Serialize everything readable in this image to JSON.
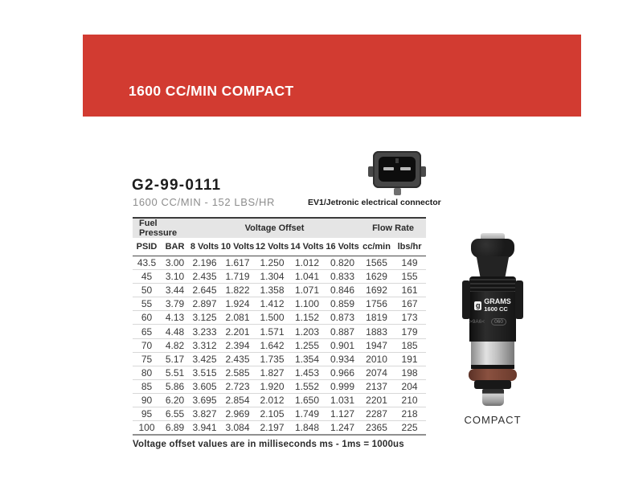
{
  "banner": {
    "title": "1600 CC/MIN COMPACT",
    "color": "#d23b31"
  },
  "product": {
    "part_number": "G2-99-0111",
    "flow_subtitle": "1600 CC/MIN - 152 LBS/HR",
    "connector_caption": "EV1/Jetronic electrical connector"
  },
  "table": {
    "group_headers": [
      {
        "label": "Fuel Pressure",
        "span": 2
      },
      {
        "label": "Voltage Offset",
        "span": 5
      },
      {
        "label": "Flow Rate",
        "span": 2
      }
    ],
    "columns": [
      "PSID",
      "BAR",
      "8 Volts",
      "10 Volts",
      "12 Volts",
      "14 Volts",
      "16 Volts",
      "cc/min",
      "lbs/hr"
    ],
    "rows": [
      [
        "43.5",
        "3.00",
        "2.196",
        "1.617",
        "1.250",
        "1.012",
        "0.820",
        "1565",
        "149"
      ],
      [
        "45",
        "3.10",
        "2.435",
        "1.719",
        "1.304",
        "1.041",
        "0.833",
        "1629",
        "155"
      ],
      [
        "50",
        "3.44",
        "2.645",
        "1.822",
        "1.358",
        "1.071",
        "0.846",
        "1692",
        "161"
      ],
      [
        "55",
        "3.79",
        "2.897",
        "1.924",
        "1.412",
        "1.100",
        "0.859",
        "1756",
        "167"
      ],
      [
        "60",
        "4.13",
        "3.125",
        "2.081",
        "1.500",
        "1.152",
        "0.873",
        "1819",
        "173"
      ],
      [
        "65",
        "4.48",
        "3.233",
        "2.201",
        "1.571",
        "1.203",
        "0.887",
        "1883",
        "179"
      ],
      [
        "70",
        "4.82",
        "3.312",
        "2.394",
        "1.642",
        "1.255",
        "0.901",
        "1947",
        "185"
      ],
      [
        "75",
        "5.17",
        "3.425",
        "2.435",
        "1.735",
        "1.354",
        "0.934",
        "2010",
        "191"
      ],
      [
        "80",
        "5.51",
        "3.515",
        "2.585",
        "1.827",
        "1.453",
        "0.966",
        "2074",
        "198"
      ],
      [
        "85",
        "5.86",
        "3.605",
        "2.723",
        "1.920",
        "1.552",
        "0.999",
        "2137",
        "204"
      ],
      [
        "90",
        "6.20",
        "3.695",
        "2.854",
        "2.012",
        "1.650",
        "1.031",
        "2201",
        "210"
      ],
      [
        "95",
        "6.55",
        "3.827",
        "2.969",
        "2.105",
        "1.749",
        "1.127",
        "2287",
        "218"
      ],
      [
        "100",
        "6.89",
        "3.941",
        "3.084",
        "2.197",
        "1.848",
        "1.247",
        "2365",
        "225"
      ]
    ]
  },
  "injector": {
    "logo_char": "g",
    "brand": "GRAMS",
    "size_label": "1600 CC",
    "marking_left": ">9A6<",
    "marking_right": "060",
    "caption": "COMPACT"
  },
  "footnote": "Voltage offset values are in milliseconds ms - 1ms = 1000us"
}
